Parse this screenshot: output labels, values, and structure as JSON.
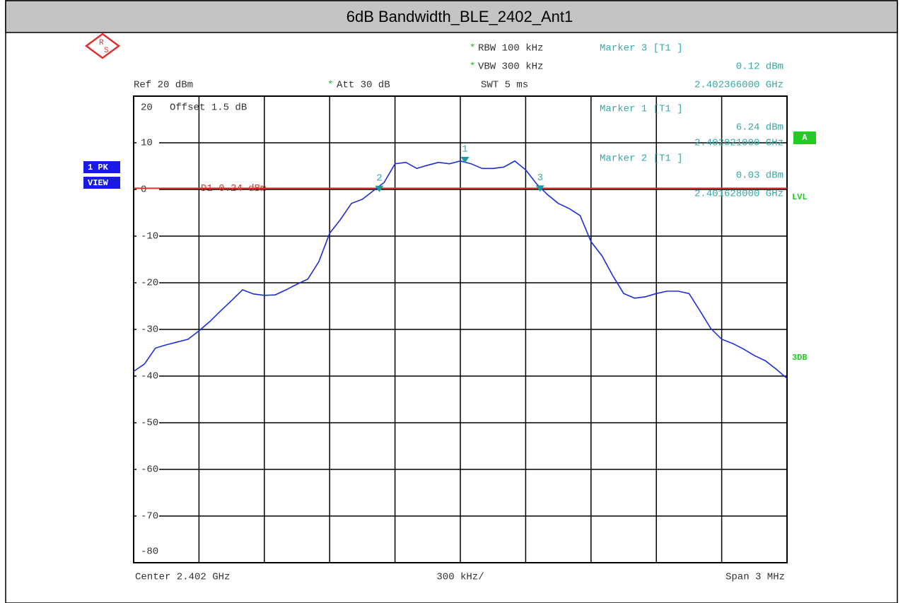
{
  "instrument": {
    "changed": "*",
    "rbw": "RBW 100 kHz",
    "vbw": "VBW 300 kHz",
    "ref": "Ref 20 dBm",
    "att": "Att 30 dB",
    "swt": "SWT 5 ms",
    "offset": "Offset 1.5 dB",
    "trace": "1 PK",
    "view": "VIEW",
    "a": "A",
    "lvl": "LVL",
    "db3": "3DB",
    "logo_r": "R",
    "logo_s": "S"
  },
  "chart_data": {
    "type": "line",
    "title": "6dB Bandwidth_BLE_2402_Ant1",
    "x_center": "Center 2.402 GHz",
    "x_per_div": "300 kHz/",
    "x_span": "Span 3 MHz",
    "xlim": [
      2.4005,
      2.4035
    ],
    "xticks": [
      2.4005,
      2.4008,
      2.4011,
      2.4014,
      2.4017,
      2.402,
      2.4023,
      2.4026,
      2.4029,
      2.4032,
      2.4035
    ],
    "ylim": [
      -80,
      20
    ],
    "yticks": [
      20,
      10,
      0,
      -10,
      -20,
      -30,
      -40,
      -50,
      -60,
      -70,
      -80
    ],
    "grid": true,
    "x": [
      2.4005,
      2.40055,
      2.4006,
      2.40065,
      2.4007,
      2.40075,
      2.4008,
      2.40085,
      2.4009,
      2.40095,
      2.401,
      2.40105,
      2.4011,
      2.40115,
      2.4012,
      2.40125,
      2.4013,
      2.40135,
      2.4014,
      2.40145,
      2.4015,
      2.40155,
      2.4016,
      2.40165,
      2.4017,
      2.40175,
      2.4018,
      2.40185,
      2.4019,
      2.40195,
      2.402,
      2.40205,
      2.4021,
      2.40215,
      2.4022,
      2.40225,
      2.4023,
      2.40235,
      2.4024,
      2.40245,
      2.4025,
      2.40255,
      2.4026,
      2.40265,
      2.4027,
      2.40275,
      2.4028,
      2.40285,
      2.4029,
      2.40295,
      2.403,
      2.40305,
      2.4031,
      2.40315,
      2.4032,
      2.40325,
      2.4033,
      2.40335,
      2.4034,
      2.40345,
      2.4035
    ],
    "series": [
      {
        "name": "1 PK",
        "color": "#1c2fd6",
        "values": [
          -39,
          -37.4,
          -34,
          -33.3,
          -32.7,
          -32.1,
          -30.3,
          -28.3,
          -26,
          -23.8,
          -21.5,
          -22.4,
          -22.7,
          -22.6,
          -21.5,
          -20.3,
          -19.2,
          -15.5,
          -9.4,
          -6.4,
          -3,
          -2.1,
          -0.3,
          1.5,
          5.5,
          5.8,
          4.5,
          5.2,
          5.8,
          5.5,
          6.1,
          5.5,
          4.5,
          4.5,
          4.8,
          6.1,
          4.2,
          1.2,
          -1.1,
          -3,
          -4.1,
          -5.6,
          -11.2,
          -14.2,
          -18.5,
          -22.3,
          -23.3,
          -23,
          -22.3,
          -21.8,
          -21.8,
          -22.3,
          -26,
          -29.8,
          -32.1,
          -33,
          -34.2,
          -35.6,
          -36.7,
          -38.5,
          -40.5
        ]
      }
    ],
    "display_line": {
      "value": 0.24,
      "label": "D1 0.24 dBm",
      "color": "#e0302a"
    },
    "markers": [
      {
        "name": "Marker 3 [T1 ]",
        "number": "3",
        "x": 2.402366,
        "x_label": "2.402366000 GHz",
        "y": 0.12,
        "y_label": "0.12 dBm"
      },
      {
        "name": "Marker 1 [T1 ]",
        "number": "1",
        "x": 2.402021,
        "x_label": "2.402021000 GHz",
        "y": 6.24,
        "y_label": "6.24 dBm"
      },
      {
        "name": "Marker 2 [T1 ]",
        "number": "2",
        "x": 2.401628,
        "x_label": "2.401628000 GHz",
        "y": 0.03,
        "y_label": "0.03 dBm"
      }
    ],
    "marker_color": "#1a9a9a"
  }
}
